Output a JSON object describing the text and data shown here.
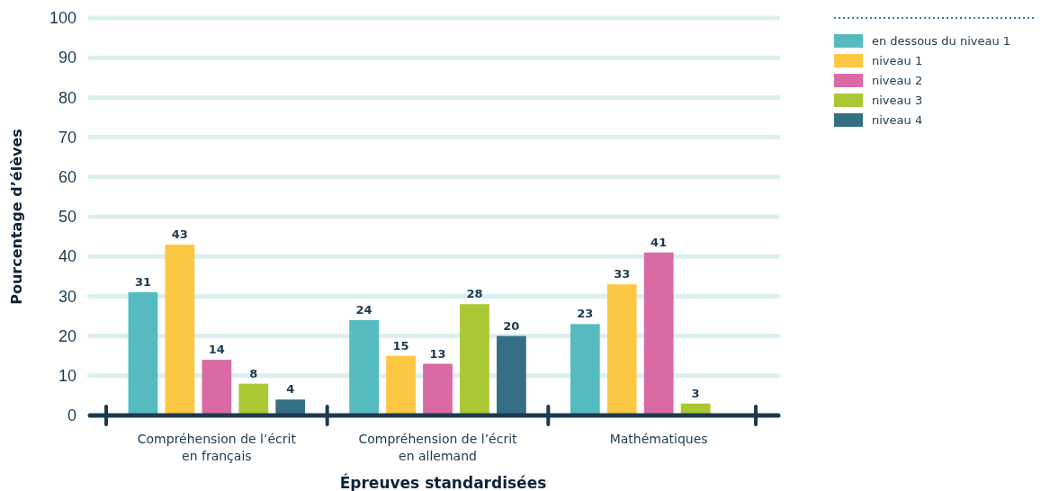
{
  "chart_data": {
    "type": "bar",
    "xlabel": "Épreuves standardisées",
    "ylabel": "Pourcentage d’élèves",
    "categories": [
      "Compréhension de l’écrit\nen français",
      "Compréhension de l’écrit\nen allemand",
      "Mathématiques"
    ],
    "series": [
      {
        "name": "en dessous du niveau 1",
        "color": "#56bbc1",
        "values": [
          31,
          24,
          23
        ]
      },
      {
        "name": "niveau 1",
        "color": "#fcc844",
        "values": [
          43,
          15,
          33
        ]
      },
      {
        "name": "niveau 2",
        "color": "#d96aa3",
        "values": [
          14,
          13,
          41
        ]
      },
      {
        "name": "niveau 3",
        "color": "#a9c834",
        "values": [
          8,
          28,
          3
        ]
      },
      {
        "name": "niveau 4",
        "color": "#346f85",
        "values": [
          4,
          20,
          null
        ]
      }
    ],
    "ylim": [
      0,
      100
    ],
    "yticks": [
      0,
      10,
      20,
      30,
      40,
      50,
      60,
      70,
      80,
      90,
      100
    ],
    "grid": "y",
    "legend": "top right",
    "data_labels": true
  }
}
